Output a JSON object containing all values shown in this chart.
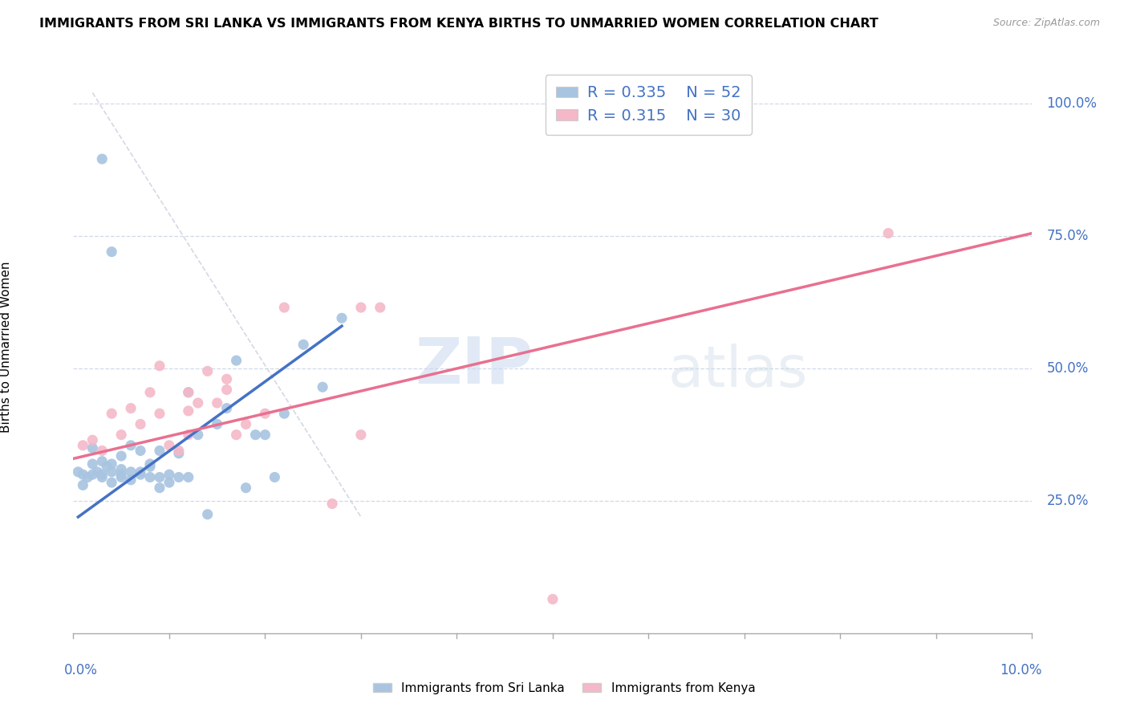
{
  "title": "IMMIGRANTS FROM SRI LANKA VS IMMIGRANTS FROM KENYA BIRTHS TO UNMARRIED WOMEN CORRELATION CHART",
  "source": "Source: ZipAtlas.com",
  "ylabel": "Births to Unmarried Women",
  "sri_lanka_color": "#a8c4e0",
  "kenya_color": "#f4b8c8",
  "sri_lanka_line_color": "#4472c4",
  "kenya_line_color": "#e87090",
  "diagonal_color": "#c8d0dc",
  "xmin": 0.0,
  "xmax": 0.1,
  "ymin": 0.0,
  "ymax": 1.08,
  "y_ticks": [
    0.25,
    0.5,
    0.75,
    1.0
  ],
  "y_tick_labels": [
    "25.0%",
    "50.0%",
    "75.0%",
    "100.0%"
  ],
  "sri_lanka_x": [
    0.0005,
    0.001,
    0.001,
    0.0015,
    0.002,
    0.002,
    0.002,
    0.0025,
    0.003,
    0.003,
    0.003,
    0.0035,
    0.004,
    0.004,
    0.004,
    0.005,
    0.005,
    0.005,
    0.005,
    0.006,
    0.006,
    0.006,
    0.007,
    0.007,
    0.007,
    0.008,
    0.008,
    0.008,
    0.009,
    0.009,
    0.009,
    0.01,
    0.01,
    0.011,
    0.011,
    0.012,
    0.012,
    0.013,
    0.014,
    0.015,
    0.016,
    0.017,
    0.018,
    0.019,
    0.02,
    0.021,
    0.022,
    0.024,
    0.026,
    0.028,
    0.003,
    0.004
  ],
  "sri_lanka_y": [
    0.305,
    0.3,
    0.28,
    0.295,
    0.35,
    0.3,
    0.32,
    0.305,
    0.3,
    0.325,
    0.295,
    0.315,
    0.285,
    0.305,
    0.32,
    0.295,
    0.31,
    0.3,
    0.335,
    0.29,
    0.305,
    0.355,
    0.3,
    0.345,
    0.305,
    0.295,
    0.315,
    0.32,
    0.275,
    0.295,
    0.345,
    0.285,
    0.3,
    0.295,
    0.34,
    0.295,
    0.455,
    0.375,
    0.225,
    0.395,
    0.425,
    0.515,
    0.275,
    0.375,
    0.375,
    0.295,
    0.415,
    0.545,
    0.465,
    0.595,
    0.895,
    0.72
  ],
  "kenya_x": [
    0.001,
    0.002,
    0.003,
    0.004,
    0.005,
    0.006,
    0.007,
    0.008,
    0.009,
    0.01,
    0.011,
    0.012,
    0.012,
    0.013,
    0.014,
    0.015,
    0.016,
    0.017,
    0.018,
    0.02,
    0.022,
    0.027,
    0.03,
    0.03,
    0.032,
    0.05,
    0.085,
    0.009,
    0.012,
    0.016
  ],
  "kenya_y": [
    0.355,
    0.365,
    0.345,
    0.415,
    0.375,
    0.425,
    0.395,
    0.455,
    0.415,
    0.355,
    0.345,
    0.455,
    0.375,
    0.435,
    0.495,
    0.435,
    0.46,
    0.375,
    0.395,
    0.415,
    0.615,
    0.245,
    0.375,
    0.615,
    0.615,
    0.065,
    0.755,
    0.505,
    0.42,
    0.48
  ],
  "sl_line_x": [
    0.0005,
    0.028
  ],
  "sl_line_y": [
    0.22,
    0.58
  ],
  "ke_line_x": [
    0.0,
    0.1
  ],
  "ke_line_y": [
    0.33,
    0.755
  ]
}
